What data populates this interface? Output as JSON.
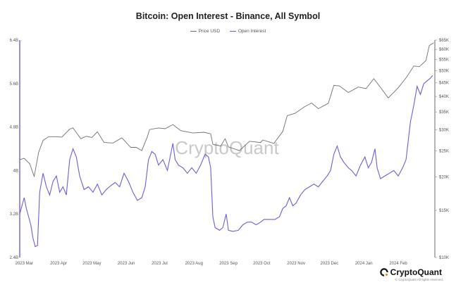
{
  "chart_data": {
    "type": "line",
    "title": "Bitcoin: Open Interest - Binance, All Symbol",
    "watermark": "CryptoQuant",
    "legend": {
      "position": "top-center"
    },
    "grid": false,
    "x_ticks": [
      "2023 Mar",
      "2023 Apr",
      "2023 May",
      "2023 Jun",
      "2023 Jul",
      "2023 Aug",
      "2023 Sep",
      "2023 Oct",
      "2023 Nov",
      "2023 Dec",
      "2024 Jan",
      "2024 Feb"
    ],
    "x_tick_dates": [
      "2023-03-01",
      "2023-04-01",
      "2023-05-01",
      "2023-06-01",
      "2023-07-01",
      "2023-08-01",
      "2023-09-01",
      "2023-10-01",
      "2023-11-01",
      "2023-12-01",
      "2024-01-01",
      "2024-02-01"
    ],
    "xlim": [
      "2023-02-25",
      "2024-03-05"
    ],
    "left_axis": {
      "scale": "linear",
      "ylim": [
        2.4,
        6.4
      ],
      "ticks": [
        2.4,
        3.2,
        4.0,
        4.8,
        5.6,
        6.4
      ],
      "tick_labels": [
        "2.4B",
        "3.2B",
        "4B",
        "4.8B",
        "5.6B",
        "6.4B"
      ],
      "color": "#6b5fd6"
    },
    "right_axis": {
      "scale": "log",
      "ylim": [
        10000,
        65000
      ],
      "ticks": [
        10000,
        15000,
        20000,
        25000,
        30000,
        35000,
        40000,
        45000,
        50000,
        55000,
        60000,
        65000
      ],
      "tick_labels": [
        "$10K",
        "$15K",
        "$20K",
        "$25K",
        "$30K",
        "$35K",
        "$40K",
        "$45K",
        "$50K",
        "$55K",
        "$60K",
        "$65K"
      ],
      "color": "#444444"
    },
    "series": [
      {
        "name": "Price USD",
        "axis": "right",
        "color": "#6f6f6f",
        "points": [
          [
            "2023-02-25",
            23200
          ],
          [
            "2023-03-01",
            23500
          ],
          [
            "2023-03-06",
            22400
          ],
          [
            "2023-03-10",
            20100
          ],
          [
            "2023-03-14",
            24700
          ],
          [
            "2023-03-18",
            27400
          ],
          [
            "2023-03-23",
            28300
          ],
          [
            "2023-03-29",
            28300
          ],
          [
            "2023-04-04",
            28200
          ],
          [
            "2023-04-11",
            30200
          ],
          [
            "2023-04-14",
            30500
          ],
          [
            "2023-04-21",
            27800
          ],
          [
            "2023-04-26",
            28400
          ],
          [
            "2023-05-01",
            28100
          ],
          [
            "2023-05-06",
            29500
          ],
          [
            "2023-05-12",
            26900
          ],
          [
            "2023-05-20",
            26800
          ],
          [
            "2023-05-28",
            28000
          ],
          [
            "2023-06-05",
            25800
          ],
          [
            "2023-06-10",
            25800
          ],
          [
            "2023-06-15",
            25100
          ],
          [
            "2023-06-20",
            28300
          ],
          [
            "2023-06-22",
            30100
          ],
          [
            "2023-06-30",
            30500
          ],
          [
            "2023-07-06",
            30300
          ],
          [
            "2023-07-13",
            31400
          ],
          [
            "2023-07-20",
            29800
          ],
          [
            "2023-07-31",
            29200
          ],
          [
            "2023-08-10",
            29400
          ],
          [
            "2023-08-16",
            29000
          ],
          [
            "2023-08-18",
            26500
          ],
          [
            "2023-08-25",
            26100
          ],
          [
            "2023-08-29",
            27800
          ],
          [
            "2023-09-01",
            25900
          ],
          [
            "2023-09-11",
            25100
          ],
          [
            "2023-09-20",
            27200
          ],
          [
            "2023-09-30",
            26900
          ],
          [
            "2023-10-02",
            27500
          ],
          [
            "2023-10-12",
            26700
          ],
          [
            "2023-10-20",
            29600
          ],
          [
            "2023-10-24",
            33900
          ],
          [
            "2023-10-31",
            34600
          ],
          [
            "2023-11-09",
            36700
          ],
          [
            "2023-11-15",
            37800
          ],
          [
            "2023-11-21",
            36000
          ],
          [
            "2023-11-30",
            37700
          ],
          [
            "2023-12-05",
            44000
          ],
          [
            "2023-12-10",
            43800
          ],
          [
            "2023-12-18",
            41400
          ],
          [
            "2023-12-27",
            43400
          ],
          [
            "2024-01-03",
            42800
          ],
          [
            "2024-01-10",
            46600
          ],
          [
            "2024-01-17",
            42700
          ],
          [
            "2024-01-23",
            39500
          ],
          [
            "2024-02-01",
            43100
          ],
          [
            "2024-02-09",
            47500
          ],
          [
            "2024-02-15",
            52000
          ],
          [
            "2024-02-20",
            51700
          ],
          [
            "2024-02-26",
            54500
          ],
          [
            "2024-02-29",
            62000
          ],
          [
            "2024-03-04",
            63500
          ]
        ]
      },
      {
        "name": "Open Interest",
        "axis": "left",
        "color": "#6b5fd6",
        "points": [
          [
            "2023-02-25",
            3.2
          ],
          [
            "2023-02-27",
            3.35
          ],
          [
            "2023-03-01",
            3.5
          ],
          [
            "2023-03-03",
            3.3
          ],
          [
            "2023-03-05",
            3.15
          ],
          [
            "2023-03-07",
            3.0
          ],
          [
            "2023-03-09",
            2.75
          ],
          [
            "2023-03-11",
            2.6
          ],
          [
            "2023-03-13",
            2.62
          ],
          [
            "2023-03-15",
            3.6
          ],
          [
            "2023-03-18",
            3.95
          ],
          [
            "2023-03-21",
            3.7
          ],
          [
            "2023-03-24",
            3.55
          ],
          [
            "2023-03-27",
            3.8
          ],
          [
            "2023-03-30",
            3.9
          ],
          [
            "2023-04-02",
            3.6
          ],
          [
            "2023-04-05",
            3.7
          ],
          [
            "2023-04-08",
            3.55
          ],
          [
            "2023-04-11",
            4.2
          ],
          [
            "2023-04-14",
            4.4
          ],
          [
            "2023-04-17",
            4.25
          ],
          [
            "2023-04-20",
            3.9
          ],
          [
            "2023-04-24",
            3.65
          ],
          [
            "2023-04-28",
            3.7
          ],
          [
            "2023-05-02",
            3.6
          ],
          [
            "2023-05-06",
            3.75
          ],
          [
            "2023-05-10",
            3.55
          ],
          [
            "2023-05-14",
            3.65
          ],
          [
            "2023-05-18",
            3.72
          ],
          [
            "2023-05-22",
            3.78
          ],
          [
            "2023-05-26",
            3.7
          ],
          [
            "2023-05-30",
            3.95
          ],
          [
            "2023-06-03",
            3.8
          ],
          [
            "2023-06-07",
            3.6
          ],
          [
            "2023-06-11",
            3.45
          ],
          [
            "2023-06-15",
            3.5
          ],
          [
            "2023-06-18",
            3.7
          ],
          [
            "2023-06-21",
            4.2
          ],
          [
            "2023-06-24",
            4.35
          ],
          [
            "2023-06-27",
            4.3
          ],
          [
            "2023-06-30",
            4.1
          ],
          [
            "2023-07-04",
            4.2
          ],
          [
            "2023-07-08",
            4.0
          ],
          [
            "2023-07-13",
            4.5
          ],
          [
            "2023-07-15",
            4.2
          ],
          [
            "2023-07-18",
            4.1
          ],
          [
            "2023-07-22",
            4.05
          ],
          [
            "2023-07-26",
            3.95
          ],
          [
            "2023-07-30",
            4.05
          ],
          [
            "2023-08-03",
            3.95
          ],
          [
            "2023-08-07",
            4.1
          ],
          [
            "2023-08-11",
            4.3
          ],
          [
            "2023-08-14",
            4.25
          ],
          [
            "2023-08-16",
            4.05
          ],
          [
            "2023-08-18",
            3.15
          ],
          [
            "2023-08-20",
            2.95
          ],
          [
            "2023-08-24",
            2.9
          ],
          [
            "2023-08-27",
            2.95
          ],
          [
            "2023-08-30",
            3.2
          ],
          [
            "2023-09-01",
            2.9
          ],
          [
            "2023-09-05",
            2.88
          ],
          [
            "2023-09-10",
            2.9
          ],
          [
            "2023-09-14",
            3.0
          ],
          [
            "2023-09-18",
            3.05
          ],
          [
            "2023-09-22",
            3.05
          ],
          [
            "2023-09-26",
            3.0
          ],
          [
            "2023-09-30",
            3.05
          ],
          [
            "2023-10-03",
            3.1
          ],
          [
            "2023-10-08",
            3.1
          ],
          [
            "2023-10-13",
            3.1
          ],
          [
            "2023-10-17",
            3.15
          ],
          [
            "2023-10-20",
            3.3
          ],
          [
            "2023-10-23",
            3.35
          ],
          [
            "2023-10-26",
            3.5
          ],
          [
            "2023-10-29",
            3.35
          ],
          [
            "2023-11-01",
            3.4
          ],
          [
            "2023-11-05",
            3.55
          ],
          [
            "2023-11-09",
            3.65
          ],
          [
            "2023-11-13",
            3.7
          ],
          [
            "2023-11-17",
            3.75
          ],
          [
            "2023-11-21",
            3.7
          ],
          [
            "2023-11-25",
            3.8
          ],
          [
            "2023-11-29",
            3.9
          ],
          [
            "2023-12-02",
            4.0
          ],
          [
            "2023-12-05",
            4.3
          ],
          [
            "2023-12-08",
            4.45
          ],
          [
            "2023-12-11",
            4.25
          ],
          [
            "2023-12-14",
            4.15
          ],
          [
            "2023-12-18",
            4.05
          ],
          [
            "2023-12-21",
            4.0
          ],
          [
            "2023-12-25",
            3.9
          ],
          [
            "2023-12-29",
            4.1
          ],
          [
            "2024-01-02",
            4.25
          ],
          [
            "2024-01-05",
            4.05
          ],
          [
            "2024-01-08",
            4.15
          ],
          [
            "2024-01-11",
            4.4
          ],
          [
            "2024-01-13",
            4.05
          ],
          [
            "2024-01-16",
            3.85
          ],
          [
            "2024-01-20",
            3.9
          ],
          [
            "2024-01-24",
            3.95
          ],
          [
            "2024-01-28",
            4.0
          ],
          [
            "2024-02-01",
            3.9
          ],
          [
            "2024-02-05",
            4.05
          ],
          [
            "2024-02-08",
            4.2
          ],
          [
            "2024-02-12",
            4.9
          ],
          [
            "2024-02-15",
            5.2
          ],
          [
            "2024-02-18",
            5.55
          ],
          [
            "2024-02-21",
            5.4
          ],
          [
            "2024-02-24",
            5.6
          ],
          [
            "2024-02-27",
            5.65
          ],
          [
            "2024-03-01",
            5.7
          ],
          [
            "2024-03-03",
            5.75
          ]
        ]
      }
    ]
  },
  "brand": {
    "name": "CryptoQuant",
    "copyright": "© CryptoQuant All rights reserved."
  }
}
